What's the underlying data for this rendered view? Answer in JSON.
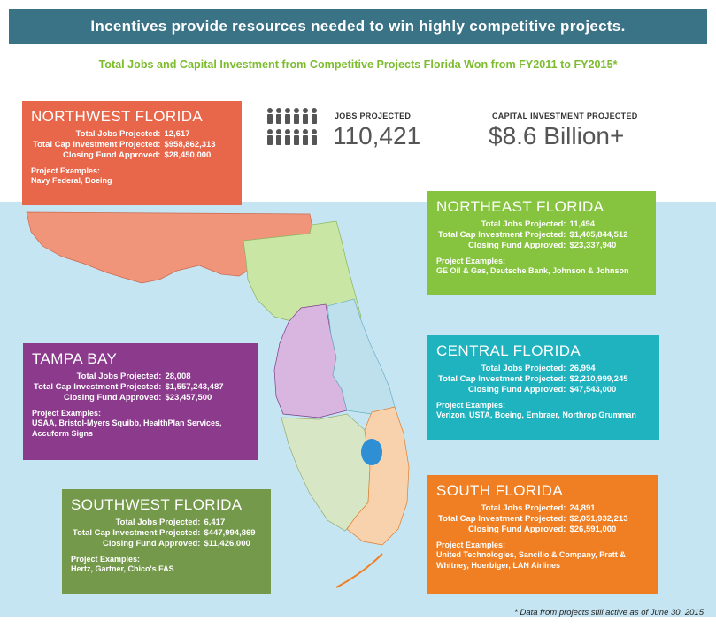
{
  "banner": "Incentives provide resources needed to win highly competitive projects.",
  "subtitle": "Total Jobs and Capital Investment from Competitive Projects Florida Won from FY2011 to FY2015*",
  "stats": {
    "jobs_label": "JOBS PROJECTED",
    "jobs_value": "110,421",
    "capital_label": "CAPITAL INVESTMENT PROJECTED",
    "capital_value": "$8.6 Billion+"
  },
  "labels": {
    "jobs": "Total Jobs Projected:",
    "capital": "Total Cap Investment Projected:",
    "fund": "Closing Fund Approved:",
    "examples": "Project Examples:"
  },
  "regions": {
    "northwest": {
      "name": "NORTHWEST FLORIDA",
      "jobs": "12,617",
      "capital": "$958,862,313",
      "fund": "$28,450,000",
      "examples": "Navy Federal, Boeing",
      "color": "#e8674a"
    },
    "northeast": {
      "name": "NORTHEAST FLORIDA",
      "jobs": "11,494",
      "capital": "$1,405,844,512",
      "fund": "$23,337,940",
      "examples": "GE Oil & Gas, Deutsche Bank, Johnson & Johnson",
      "color": "#86c440"
    },
    "tampa": {
      "name": "TAMPA BAY",
      "jobs": "28,008",
      "capital": "$1,557,243,487",
      "fund": "$23,457,500",
      "examples": "USAA, Bristol-Myers Squibb, HealthPlan Services, Accuform Signs",
      "color": "#8c3a8c"
    },
    "central": {
      "name": "CENTRAL FLORIDA",
      "jobs": "26,994",
      "capital": "$2,210,999,245",
      "fund": "$47,543,000",
      "examples": "Verizon, USTA, Boeing, Embraer, Northrop Grumman",
      "color": "#1fb3bf"
    },
    "southwest": {
      "name": "SOUTHWEST FLORIDA",
      "jobs": "6,417",
      "capital": "$447,994,869",
      "fund": "$11,426,000",
      "examples": "Hertz, Gartner, Chico's FAS",
      "color": "#74994a"
    },
    "south": {
      "name": "SOUTH FLORIDA",
      "jobs": "24,891",
      "capital": "$2,051,932,213",
      "fund": "$26,591,000",
      "examples": "United Technologies, Sancilio & Company, Pratt & Whitney, Hoerbiger, LAN Airlines",
      "color": "#f07f23"
    }
  },
  "footnote": "* Data from projects still active as of June 30, 2015",
  "icons": {
    "people": "people-icon"
  }
}
